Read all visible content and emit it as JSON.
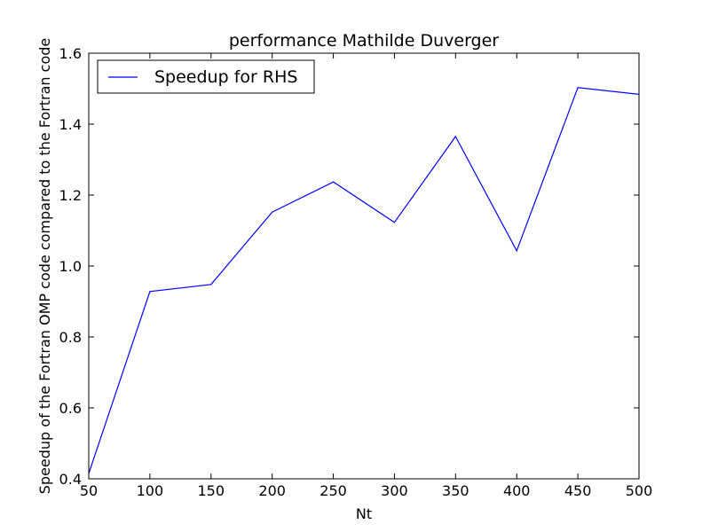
{
  "chart_data": {
    "type": "line",
    "title": "performance Mathilde Duverger",
    "xlabel": "Nt",
    "ylabel": "Speedup of the Fortran OMP code compared to the Fortran code",
    "xlim": [
      50,
      500
    ],
    "ylim": [
      0.4,
      1.6
    ],
    "grid": false,
    "legend_position": "upper-left",
    "x_ticks": [
      "50",
      "100",
      "150",
      "200",
      "250",
      "300",
      "350",
      "400",
      "450",
      "500"
    ],
    "y_ticks": [
      "0.4",
      "0.6",
      "0.8",
      "1.0",
      "1.2",
      "1.4",
      "1.6"
    ],
    "series": [
      {
        "name": "Speedup for RHS",
        "color": "#0000ff",
        "x": [
          50,
          100,
          150,
          200,
          250,
          300,
          350,
          400,
          450,
          500
        ],
        "y": [
          0.415,
          0.928,
          0.948,
          1.152,
          1.237,
          1.123,
          1.365,
          1.043,
          1.503,
          1.484
        ]
      }
    ]
  }
}
